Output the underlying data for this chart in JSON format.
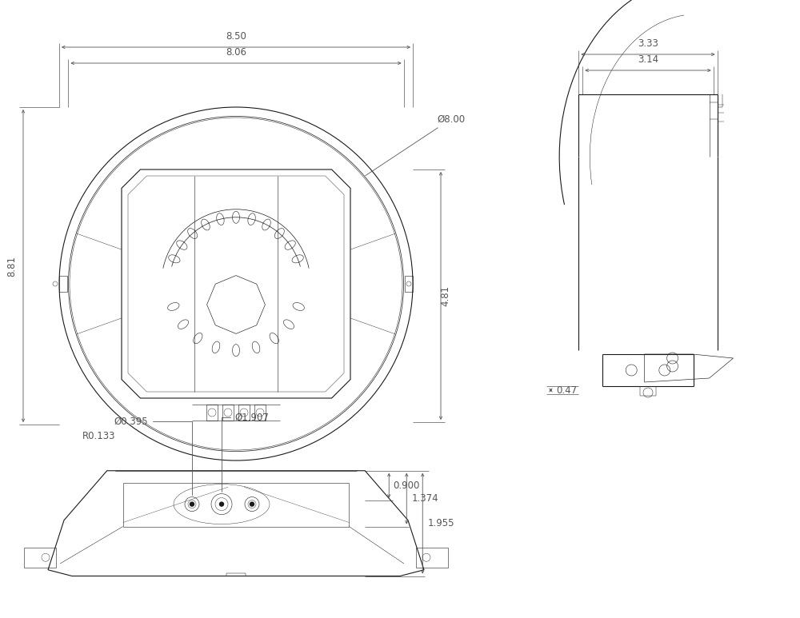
{
  "bg_color": "#ffffff",
  "line_color": "#1a1a1a",
  "dim_color": "#555555",
  "dim_fontsize": 8.5,
  "dims": {
    "width_850": "8.50",
    "width_806": "8.06",
    "dia_800": "Ø8.00",
    "height_881": "8.81",
    "height_481": "4.81",
    "width_333": "3.33",
    "width_314": "3.14",
    "height_047": "0.47",
    "dia_0395": "Ø0.395",
    "r0133": "R0.133",
    "dia_1907": "Ø1.907",
    "h_0900": "0.900",
    "h_1374": "1.374",
    "h_1955": "1.955"
  }
}
